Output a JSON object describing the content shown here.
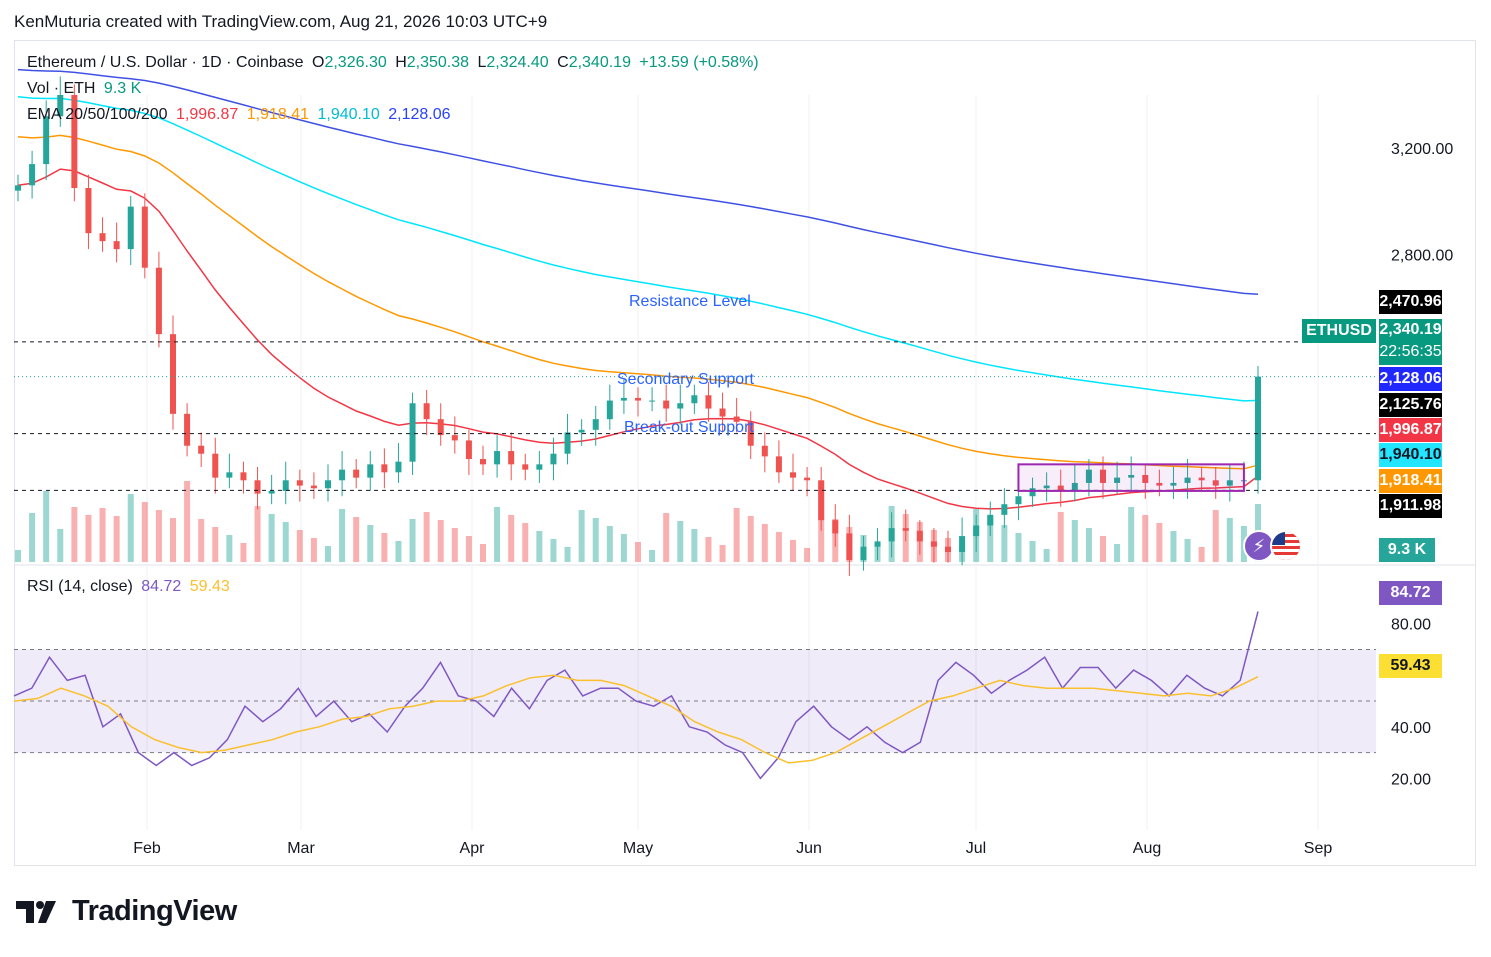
{
  "credit": "KenMuturia created with TradingView.com, Aug 21, 2026 10:03 UTC+9",
  "legend": {
    "symbol": "Ethereum / U.S. Dollar · 1D · Coinbase",
    "o_label": "O",
    "o_value": "2,326.30",
    "h_label": "H",
    "h_value": "2,350.38",
    "l_label": "L",
    "l_value": "2,324.40",
    "c_label": "C",
    "c_value": "2,340.19",
    "change": "+13.59 (+0.58%)",
    "vol_label": "Vol · ETH",
    "vol_value": "9.3 K",
    "ema_label": "EMA 20/50/100/200",
    "ema20": "1,996.87",
    "ema50": "1,918.41",
    "ema100": "1,940.10",
    "ema200": "2,128.06",
    "rsi_label": "RSI (14, close)",
    "rsi_value": "84.72",
    "rsi_ma_value": "59.43"
  },
  "annotations": {
    "resistance": "Resistance Level",
    "secondary": "Secondary Support",
    "breakout": "Break-out Support"
  },
  "price_tags": {
    "symbol": "ETHUSD",
    "resistance": "2,470.96",
    "last": "2,340.19",
    "countdown": "22:56:35",
    "ema200": "2,128.06",
    "secondary": "2,125.76",
    "ema20": "1,996.87",
    "ema100": "1,940.10",
    "ema50": "1,918.41",
    "breakout": "1,911.98",
    "volume": "9.3 K",
    "rsi": "84.72",
    "rsi_ma": "59.43"
  },
  "colors": {
    "up": "#26a69a",
    "down": "#ef5350",
    "ema20": "#f23645",
    "ema50": "#ff9800",
    "ema100": "#00e5ff",
    "ema200": "#3f51e5",
    "rsi": "#7e57c2",
    "rsi_ma": "#fbc02d",
    "annotation": "#2962ff",
    "box": "#9c27b0"
  },
  "logo": {
    "text": "TradingView",
    "icon": "tradingview-logo-icon"
  },
  "chart_data": {
    "type": "candlestick",
    "price_axis": {
      "ticks": [
        "3,200.00",
        "2,800.00"
      ],
      "values": [
        3200,
        2800
      ]
    },
    "x_ticks": [
      "Feb",
      "Mar",
      "Apr",
      "May",
      "Jun",
      "Jul",
      "Aug",
      "Sep"
    ],
    "levels": [
      {
        "name": "Resistance Level",
        "value": 2470.96
      },
      {
        "name": "Secondary Support",
        "value": 2125.76
      },
      {
        "name": "Break-out Support",
        "value": 1911.98
      }
    ],
    "ema_series": [
      {
        "name": "EMA 20",
        "last": 1996.87
      },
      {
        "name": "EMA 50",
        "last": 1918.41
      },
      {
        "name": "EMA 100",
        "last": 1940.1
      },
      {
        "name": "EMA 200",
        "last": 2128.06
      }
    ],
    "close_series": [
      3060,
      3140,
      3320,
      3400,
      3050,
      2880,
      2850,
      2820,
      2980,
      2750,
      2500,
      2200,
      2080,
      2050,
      1960,
      1980,
      1950,
      1900,
      1910,
      1950,
      1930,
      1920,
      1950,
      1990,
      1960,
      2010,
      1980,
      2020,
      2240,
      2180,
      2120,
      2100,
      2030,
      2010,
      2060,
      2010,
      1990,
      2010,
      2050,
      2130,
      2140,
      2180,
      2250,
      2260,
      2250,
      2250,
      2220,
      2240,
      2270,
      2220,
      2190,
      2170,
      2080,
      2040,
      1980,
      1960,
      1950,
      1800,
      1750,
      1650,
      1700,
      1720,
      1770,
      1760,
      1720,
      1700,
      1680,
      1740,
      1780,
      1820,
      1860,
      1890,
      1920,
      1930,
      1910,
      1940,
      1990,
      1940,
      1960,
      1970,
      1940,
      1930,
      1940,
      1960,
      1950,
      1930,
      1950,
      1950,
      2340
    ],
    "rsi_axis": {
      "ticks": [
        "80.00",
        "40.00",
        "20.00"
      ],
      "values": [
        80,
        40,
        20
      ]
    },
    "rsi_series": [
      52,
      55,
      67,
      58,
      60,
      40,
      45,
      30,
      25,
      30,
      25,
      28,
      35,
      48,
      42,
      47,
      55,
      44,
      50,
      42,
      45,
      38,
      48,
      55,
      65,
      52,
      50,
      44,
      55,
      47,
      58,
      62,
      52,
      55,
      55,
      50,
      48,
      52,
      40,
      38,
      33,
      30,
      20,
      28,
      42,
      48,
      40,
      35,
      40,
      34,
      30,
      34,
      58,
      65,
      60,
      53,
      58,
      62,
      67,
      55,
      63,
      63,
      55,
      62,
      58,
      52,
      60,
      55,
      52,
      58,
      84.72
    ],
    "rsi_ma_series": [
      50,
      51,
      55,
      52,
      48,
      40,
      35,
      32,
      30,
      31,
      33,
      35,
      38,
      40,
      43,
      44,
      47,
      48,
      50,
      50,
      52,
      56,
      59,
      60,
      58,
      58,
      56,
      52,
      48,
      42,
      38,
      35,
      30,
      26,
      27,
      30,
      35,
      40,
      45,
      50,
      52,
      55,
      58,
      56,
      55,
      55,
      55,
      54,
      53,
      52,
      53,
      52,
      55,
      59.43
    ]
  }
}
